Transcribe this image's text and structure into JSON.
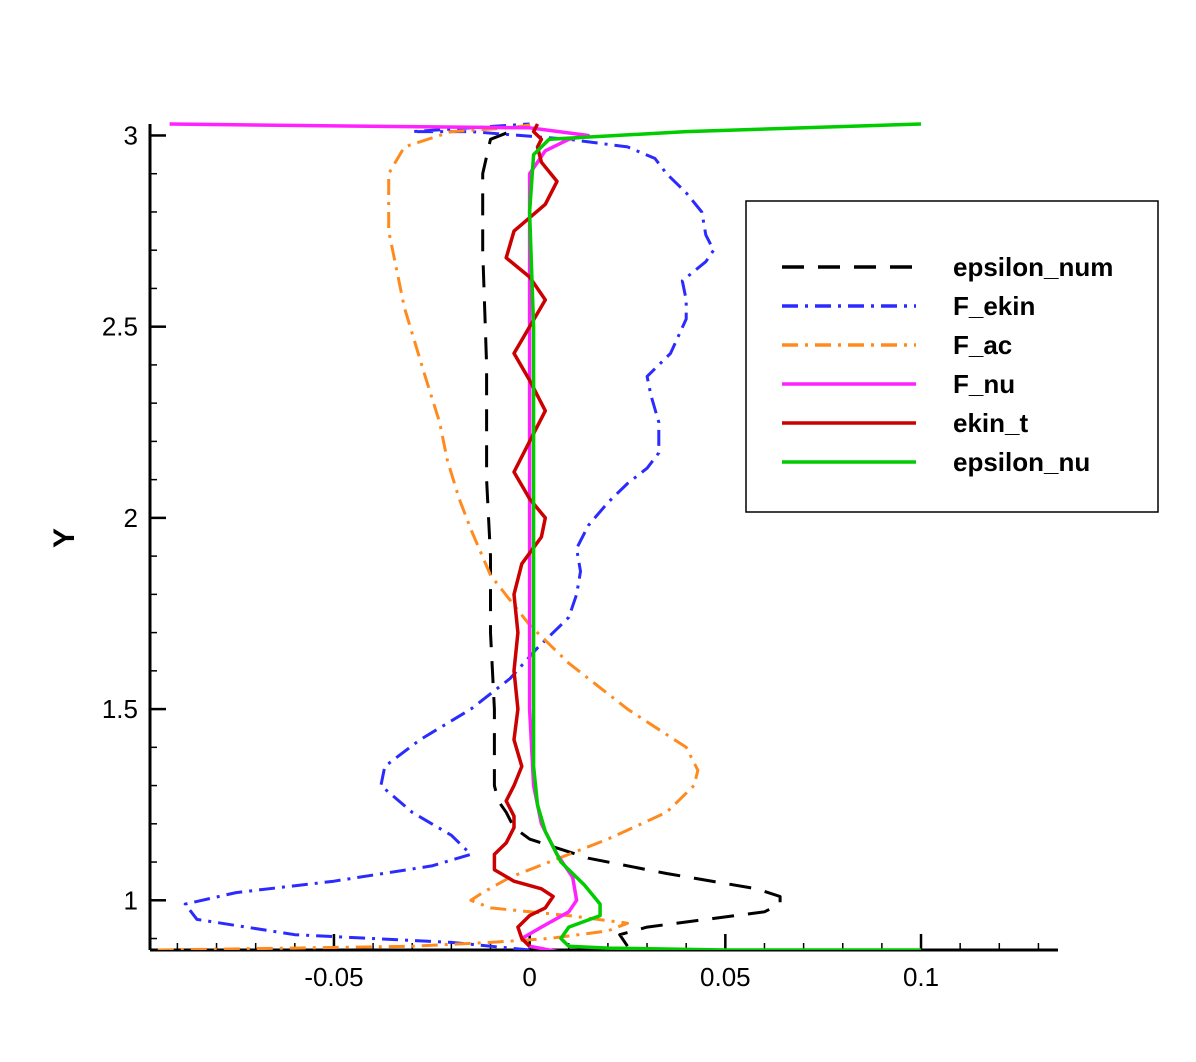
{
  "chart_data": {
    "type": "line",
    "ylabel": "Y",
    "xlabel": "",
    "xlim": [
      -0.097,
      0.135
    ],
    "ylim": [
      0.87,
      3.03
    ],
    "x_ticks": [
      -0.05,
      0,
      0.05,
      0.1
    ],
    "x_tick_labels": [
      "-0.05",
      "0",
      "0.05",
      "0.1"
    ],
    "y_ticks": [
      1,
      1.5,
      2,
      2.5,
      3
    ],
    "y_tick_labels": [
      "1",
      "1.5",
      "2",
      "2.5",
      "3"
    ],
    "grid": false,
    "legend_position": "top-right",
    "series": [
      {
        "name": "epsilon_num",
        "color": "#000000",
        "dash": "dashed",
        "points": [
          [
            0.025,
            0.88
          ],
          [
            0.023,
            0.91
          ],
          [
            0.03,
            0.93
          ],
          [
            0.06,
            0.97
          ],
          [
            0.064,
            0.99
          ],
          [
            0.064,
            1.01
          ],
          [
            0.058,
            1.03
          ],
          [
            0.035,
            1.07
          ],
          [
            0.015,
            1.11
          ],
          [
            0.003,
            1.15
          ],
          [
            0.0,
            1.16
          ],
          [
            -0.004,
            1.19
          ],
          [
            -0.006,
            1.23
          ],
          [
            -0.008,
            1.26
          ],
          [
            -0.009,
            1.3
          ],
          [
            -0.009,
            1.5
          ],
          [
            -0.01,
            1.7
          ],
          [
            -0.01,
            1.9
          ],
          [
            -0.011,
            2.1
          ],
          [
            -0.011,
            2.4
          ],
          [
            -0.012,
            2.7
          ],
          [
            -0.012,
            2.9
          ],
          [
            -0.01,
            2.99
          ],
          [
            -0.005,
            3.01
          ]
        ]
      },
      {
        "name": "F_ekin",
        "color": "#2b2bff",
        "dash": "dashdot",
        "points": [
          [
            0.0,
            0.87
          ],
          [
            -0.02,
            0.89
          ],
          [
            -0.06,
            0.91
          ],
          [
            -0.085,
            0.95
          ],
          [
            -0.088,
            0.99
          ],
          [
            -0.075,
            1.02
          ],
          [
            -0.05,
            1.05
          ],
          [
            -0.025,
            1.09
          ],
          [
            -0.015,
            1.12
          ],
          [
            -0.02,
            1.17
          ],
          [
            -0.03,
            1.23
          ],
          [
            -0.038,
            1.3
          ],
          [
            -0.037,
            1.35
          ],
          [
            -0.028,
            1.42
          ],
          [
            -0.015,
            1.5
          ],
          [
            -0.005,
            1.58
          ],
          [
            0.002,
            1.66
          ],
          [
            0.01,
            1.74
          ],
          [
            0.012,
            1.8
          ],
          [
            0.013,
            1.86
          ],
          [
            0.012,
            1.92
          ],
          [
            0.015,
            1.98
          ],
          [
            0.02,
            2.04
          ],
          [
            0.025,
            2.09
          ],
          [
            0.03,
            2.13
          ],
          [
            0.033,
            2.17
          ],
          [
            0.033,
            2.25
          ],
          [
            0.031,
            2.32
          ],
          [
            0.03,
            2.37
          ],
          [
            0.036,
            2.43
          ],
          [
            0.04,
            2.52
          ],
          [
            0.04,
            2.57
          ],
          [
            0.039,
            2.62
          ],
          [
            0.045,
            2.67
          ],
          [
            0.047,
            2.7
          ],
          [
            0.045,
            2.74
          ],
          [
            0.044,
            2.8
          ],
          [
            0.04,
            2.85
          ],
          [
            0.035,
            2.9
          ],
          [
            0.032,
            2.94
          ],
          [
            0.025,
            2.97
          ],
          [
            0.01,
            2.99
          ],
          [
            -0.015,
            3.01
          ],
          [
            -0.03,
            3.01
          ],
          [
            0.0,
            3.03
          ]
        ]
      },
      {
        "name": "F_ac",
        "color": "#ff8b1f",
        "dash": "dashdot",
        "points": [
          [
            -0.095,
            0.87
          ],
          [
            -0.06,
            0.875
          ],
          [
            -0.03,
            0.88
          ],
          [
            -0.01,
            0.89
          ],
          [
            0.005,
            0.9
          ],
          [
            0.02,
            0.92
          ],
          [
            0.025,
            0.94
          ],
          [
            0.01,
            0.96
          ],
          [
            -0.01,
            0.98
          ],
          [
            -0.015,
            1.0
          ],
          [
            -0.012,
            1.02
          ],
          [
            -0.005,
            1.06
          ],
          [
            0.005,
            1.1
          ],
          [
            0.02,
            1.16
          ],
          [
            0.035,
            1.23
          ],
          [
            0.042,
            1.3
          ],
          [
            0.043,
            1.34
          ],
          [
            0.04,
            1.4
          ],
          [
            0.025,
            1.5
          ],
          [
            0.01,
            1.62
          ],
          [
            0.0,
            1.72
          ],
          [
            -0.01,
            1.85
          ],
          [
            -0.015,
            1.97
          ],
          [
            -0.018,
            2.05
          ],
          [
            -0.021,
            2.15
          ],
          [
            -0.023,
            2.25
          ],
          [
            -0.027,
            2.38
          ],
          [
            -0.032,
            2.55
          ],
          [
            -0.036,
            2.75
          ],
          [
            -0.036,
            2.9
          ],
          [
            -0.032,
            2.97
          ],
          [
            -0.02,
            3.01
          ],
          [
            -0.005,
            3.02
          ],
          [
            0.002,
            3.03
          ]
        ]
      },
      {
        "name": "F_nu",
        "color": "#ff22ff",
        "dash": "solid",
        "points": [
          [
            0.01,
            0.86
          ],
          [
            0.0,
            0.88
          ],
          [
            -0.002,
            0.9
          ],
          [
            0.003,
            0.93
          ],
          [
            0.01,
            0.97
          ],
          [
            0.012,
            1.0
          ],
          [
            0.011,
            1.06
          ],
          [
            0.007,
            1.12
          ],
          [
            0.003,
            1.2
          ],
          [
            0.001,
            1.3
          ],
          [
            0.0,
            1.5
          ],
          [
            0.0,
            2.0
          ],
          [
            0.0,
            2.5
          ],
          [
            0.0,
            2.9
          ],
          [
            0.004,
            2.96
          ],
          [
            0.01,
            2.99
          ],
          [
            0.015,
            3.0
          ],
          [
            0.0,
            3.02
          ],
          [
            -0.05,
            3.025
          ],
          [
            -0.092,
            3.03
          ]
        ]
      },
      {
        "name": "ekin_t",
        "color": "#cc0000",
        "dash": "solid",
        "points": [
          [
            0.0,
            0.88
          ],
          [
            -0.002,
            0.9
          ],
          [
            -0.003,
            0.93
          ],
          [
            0.0,
            0.96
          ],
          [
            0.004,
            0.98
          ],
          [
            0.006,
            1.01
          ],
          [
            0.003,
            1.03
          ],
          [
            -0.004,
            1.05
          ],
          [
            -0.009,
            1.08
          ],
          [
            -0.009,
            1.12
          ],
          [
            -0.006,
            1.15
          ],
          [
            -0.004,
            1.19
          ],
          [
            -0.004,
            1.22
          ],
          [
            -0.006,
            1.26
          ],
          [
            -0.004,
            1.3
          ],
          [
            -0.002,
            1.35
          ],
          [
            -0.004,
            1.42
          ],
          [
            -0.003,
            1.5
          ],
          [
            -0.004,
            1.6
          ],
          [
            -0.003,
            1.7
          ],
          [
            -0.004,
            1.8
          ],
          [
            -0.002,
            1.88
          ],
          [
            0.003,
            1.95
          ],
          [
            0.004,
            2.0
          ],
          [
            0.0,
            2.05
          ],
          [
            -0.004,
            2.12
          ],
          [
            0.0,
            2.2
          ],
          [
            0.004,
            2.28
          ],
          [
            0.0,
            2.36
          ],
          [
            -0.004,
            2.43
          ],
          [
            0.0,
            2.5
          ],
          [
            0.004,
            2.57
          ],
          [
            0.0,
            2.63
          ],
          [
            -0.006,
            2.68
          ],
          [
            -0.004,
            2.75
          ],
          [
            0.004,
            2.82
          ],
          [
            0.007,
            2.88
          ],
          [
            0.003,
            2.93
          ],
          [
            0.002,
            2.97
          ],
          [
            0.003,
            2.99
          ],
          [
            0.001,
            3.01
          ],
          [
            0.002,
            3.03
          ]
        ]
      },
      {
        "name": "epsilon_nu",
        "color": "#00cc00",
        "dash": "solid",
        "points": [
          [
            0.1,
            0.87
          ],
          [
            0.05,
            0.87
          ],
          [
            0.02,
            0.875
          ],
          [
            0.01,
            0.88
          ],
          [
            0.008,
            0.9
          ],
          [
            0.01,
            0.93
          ],
          [
            0.018,
            0.96
          ],
          [
            0.018,
            0.99
          ],
          [
            0.014,
            1.04
          ],
          [
            0.008,
            1.1
          ],
          [
            0.004,
            1.18
          ],
          [
            0.002,
            1.25
          ],
          [
            0.001,
            1.35
          ],
          [
            0.001,
            1.5
          ],
          [
            0.001,
            2.0
          ],
          [
            0.001,
            2.5
          ],
          [
            0.0,
            2.8
          ],
          [
            0.001,
            2.95
          ],
          [
            0.005,
            2.99
          ],
          [
            0.04,
            3.01
          ],
          [
            0.1,
            3.03
          ]
        ]
      }
    ]
  }
}
